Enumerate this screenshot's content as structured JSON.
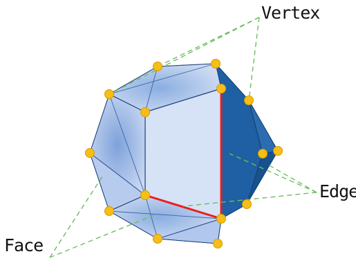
{
  "labels": {
    "vertex": "Vertex",
    "edge": "Edge",
    "face": "Face"
  },
  "colors": {
    "face_fill": "#c9d8f2",
    "face_dark": "#7ea2da",
    "side_fill": "#1f5fa3",
    "outline": "#1e3f78",
    "highlight_edge": "#ee1c1c",
    "vertex_fill": "#f6be16",
    "vertex_stroke": "#d99a00",
    "leader_line": "#6bbf5e"
  }
}
